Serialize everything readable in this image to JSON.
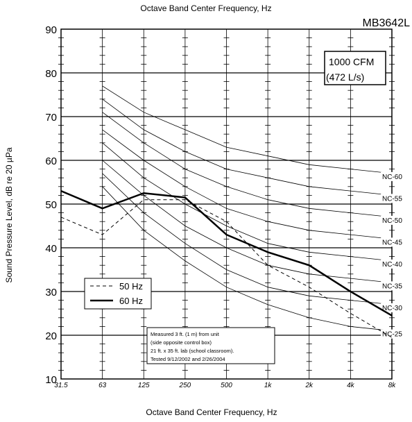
{
  "chart_data": {
    "type": "line",
    "model": "MB3642L",
    "xlabel_top": "Octave Band Center Frequency, Hz",
    "xlabel": "Octave Band Center Frequency, Hz",
    "ylabel": "Sound Pressure Level, dB re 20 µPa",
    "categories": [
      "31.5",
      "63",
      "125",
      "250",
      "500",
      "1k",
      "2k",
      "4k",
      "8k"
    ],
    "y_ticks": [
      "10",
      "20",
      "30",
      "40",
      "50",
      "60",
      "70",
      "80",
      "90"
    ],
    "ylim": [
      10,
      90
    ],
    "grid": true,
    "nc_curves": [
      {
        "label": "NC-25",
        "values": [
          null,
          54,
          44,
          37,
          31,
          27,
          24,
          22,
          21
        ]
      },
      {
        "label": "NC-30",
        "values": [
          null,
          57,
          48,
          41,
          35,
          31,
          29,
          28,
          27
        ]
      },
      {
        "label": "NC-35",
        "values": [
          null,
          60,
          52,
          45,
          40,
          36,
          34,
          33,
          32
        ]
      },
      {
        "label": "NC-40",
        "values": [
          null,
          64,
          56,
          50,
          45,
          41,
          39,
          38,
          37
        ]
      },
      {
        "label": "NC-45",
        "values": [
          null,
          67,
          60,
          54,
          49,
          46,
          44,
          43,
          42
        ]
      },
      {
        "label": "NC-50",
        "values": [
          null,
          71,
          64,
          58,
          54,
          51,
          49,
          48,
          47
        ]
      },
      {
        "label": "NC-55",
        "values": [
          null,
          74,
          67,
          62,
          58,
          56,
          54,
          53,
          52
        ]
      },
      {
        "label": "NC-60",
        "values": [
          null,
          77,
          71,
          67,
          63,
          61,
          59,
          58,
          57
        ]
      }
    ],
    "series": [
      {
        "name": "50 Hz",
        "style": "dashed",
        "values": [
          47,
          43,
          51,
          51,
          46,
          36,
          31,
          25,
          19.5
        ]
      },
      {
        "name": "60 Hz",
        "style": "solid",
        "values": [
          53,
          49,
          52.5,
          51.5,
          43,
          39,
          36,
          30,
          24.5
        ]
      }
    ],
    "legend_position": "bottom-left",
    "airflow_box": [
      "1000 CFM",
      "(472 L/s)"
    ],
    "test_note": [
      "Measured 3 ft. (1 m) from unit",
      "(side opposite control box)",
      "21 ft. x 35 ft. lab (school classroom).",
      "Tested 9/12/2002 and 2/26/2004"
    ]
  }
}
